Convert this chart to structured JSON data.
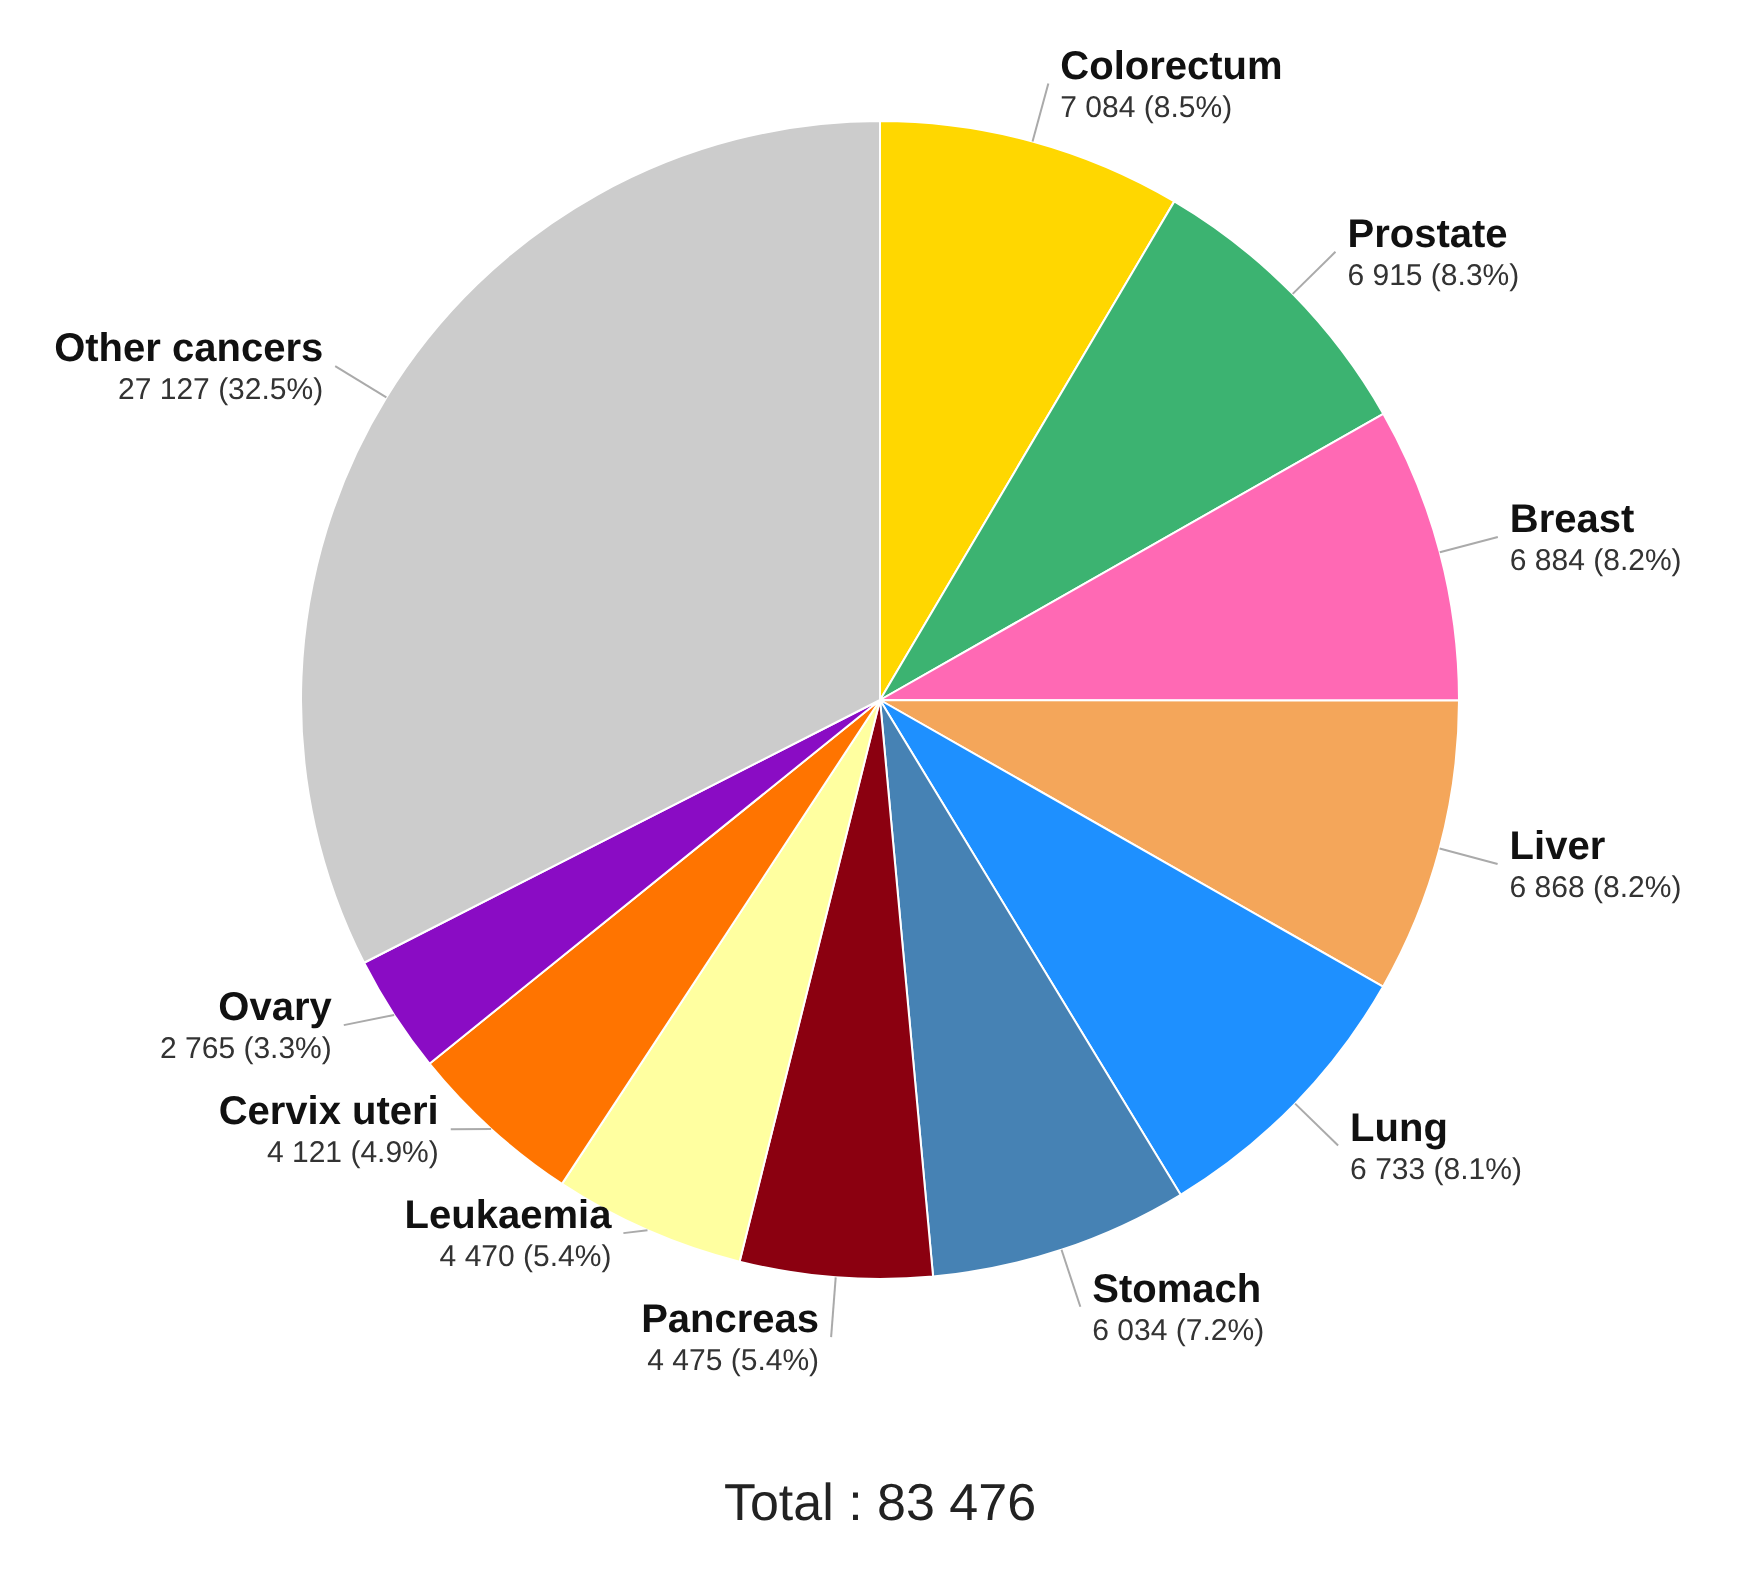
{
  "chart_data": {
    "type": "pie",
    "categories": [
      "Colorectum",
      "Prostate",
      "Breast",
      "Liver",
      "Lung",
      "Stomach",
      "Pancreas",
      "Leukaemia",
      "Cervix uteri",
      "Ovary",
      "Other cancers"
    ],
    "values": [
      7084,
      6915,
      6884,
      6868,
      6733,
      6034,
      4475,
      4470,
      4121,
      2765,
      27127
    ],
    "value_labels": [
      "7 084 (8.5%)",
      "6 915 (8.3%)",
      "6 884 (8.2%)",
      "6 868 (8.2%)",
      "6 733 (8.1%)",
      "6 034 (7.2%)",
      "4 475 (5.4%)",
      "4 470 (5.4%)",
      "4 121 (4.9%)",
      "2 765 (3.3%)",
      "27 127 (32.5%)"
    ],
    "colors": [
      "#ffd700",
      "#3cb371",
      "#ff69b4",
      "#f4a65a",
      "#1e90ff",
      "#4682b4",
      "#8b0010",
      "#ffffa0",
      "#ff7400",
      "#8a0cc4",
      "#cccccc"
    ],
    "legend": false,
    "annotations": [
      "Total : 83 476"
    ]
  }
}
